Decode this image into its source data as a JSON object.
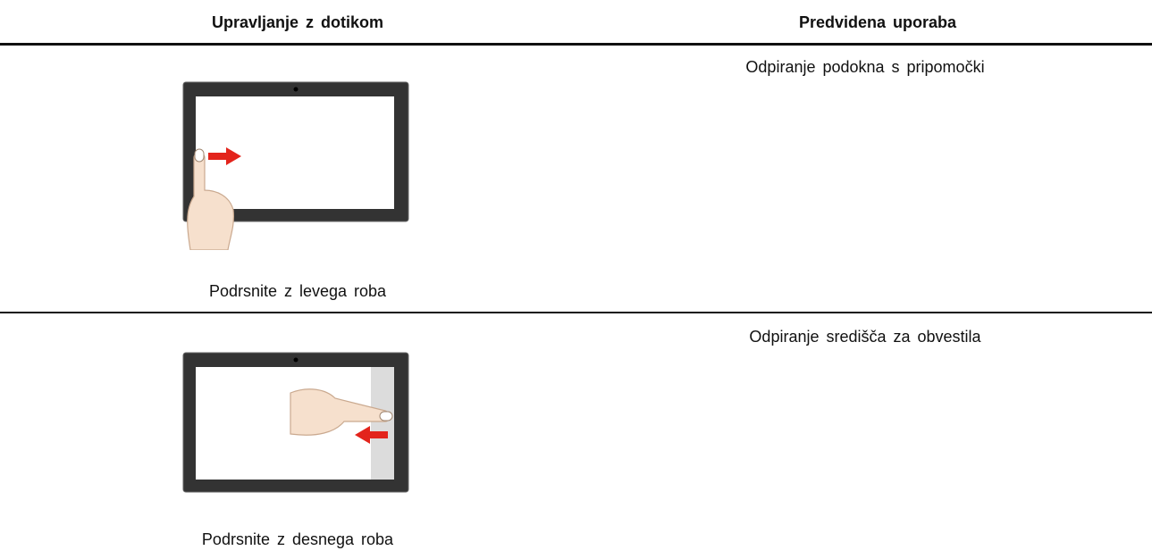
{
  "table": {
    "header": [
      "Upravljanje z dotikom",
      "Predvidena uporaba"
    ],
    "rows": [
      {
        "gesture": "Podrsnite z levega roba",
        "use": "Odpiranje podokna s pripomočki"
      },
      {
        "gesture": "Podrsnite z desnega roba",
        "use": "Odpiranje središča za obvestila"
      }
    ]
  }
}
